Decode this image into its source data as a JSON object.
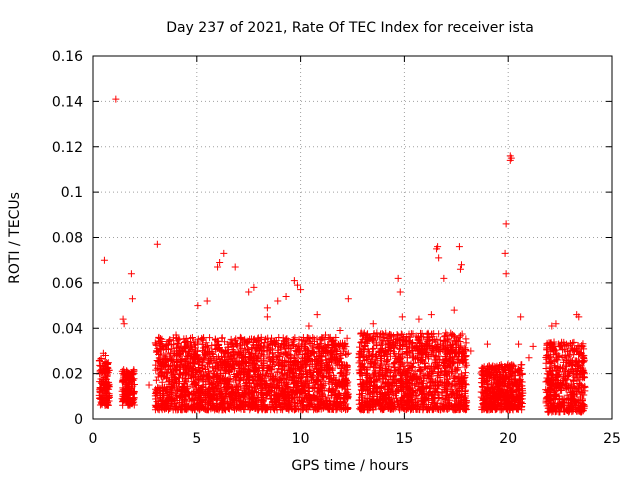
{
  "chart_data": {
    "type": "scatter",
    "title": "Day 237 of 2021, Rate Of TEC Index for receiver ista",
    "xlabel": "GPS time / hours",
    "ylabel": "ROTI / TECUs",
    "xlim": [
      0,
      25
    ],
    "ylim": [
      0,
      0.16
    ],
    "xticks": [
      "0",
      "5",
      "10",
      "15",
      "20",
      "25"
    ],
    "yticks": [
      "0",
      "0.02",
      "0.04",
      "0.06",
      "0.08",
      "0.1",
      "0.12",
      "0.14",
      "0.16"
    ],
    "grid": true,
    "marker": "+",
    "color": "#ff0000",
    "series": [
      {
        "name": "ROTI",
        "x": [
          1.1,
          0.55,
          3.1,
          6.1,
          6.0,
          6.3,
          6.85,
          5.05,
          5.5,
          4.0,
          1.85,
          1.9,
          1.45,
          1.5,
          9.7,
          9.85,
          10.0,
          9.3,
          8.9,
          8.4,
          7.5,
          7.75,
          10.8,
          11.9,
          12.3,
          14.7,
          14.8,
          16.6,
          16.55,
          16.65,
          16.9,
          17.65,
          17.7,
          17.75,
          19.9,
          19.85,
          19.9,
          20.1,
          20.15,
          20.1,
          20.6,
          20.5,
          23.3,
          23.4,
          22.3,
          22.1,
          21.2,
          19.0,
          0.5,
          0.6,
          3.7,
          4.4,
          7.1,
          8.4,
          11.2,
          13.5,
          15.7,
          18.2,
          21.0,
          22.8,
          23.7,
          2.7,
          16.3,
          17.4,
          14.9,
          10.4
        ],
        "y": [
          0.141,
          0.07,
          0.077,
          0.069,
          0.067,
          0.073,
          0.067,
          0.05,
          0.052,
          0.037,
          0.064,
          0.053,
          0.044,
          0.042,
          0.061,
          0.059,
          0.057,
          0.054,
          0.052,
          0.049,
          0.056,
          0.058,
          0.046,
          0.039,
          0.053,
          0.062,
          0.056,
          0.076,
          0.075,
          0.071,
          0.062,
          0.076,
          0.066,
          0.068,
          0.086,
          0.073,
          0.064,
          0.116,
          0.115,
          0.114,
          0.045,
          0.033,
          0.046,
          0.045,
          0.042,
          0.041,
          0.032,
          0.033,
          0.029,
          0.028,
          0.035,
          0.031,
          0.036,
          0.045,
          0.037,
          0.042,
          0.044,
          0.03,
          0.027,
          0.026,
          0.014,
          0.015,
          0.046,
          0.048,
          0.045,
          0.041
        ]
      }
    ],
    "dense_regions": [
      {
        "x_from": 0.3,
        "x_to": 0.8,
        "y_from": 0.006,
        "y_to": 0.027
      },
      {
        "x_from": 1.4,
        "x_to": 2.0,
        "y_from": 0.006,
        "y_to": 0.022
      },
      {
        "x_from": 3.0,
        "x_to": 12.3,
        "y_from": 0.004,
        "y_to": 0.036
      },
      {
        "x_from": 12.8,
        "x_to": 18.0,
        "y_from": 0.004,
        "y_to": 0.038
      },
      {
        "x_from": 18.7,
        "x_to": 20.7,
        "y_from": 0.004,
        "y_to": 0.024
      },
      {
        "x_from": 21.8,
        "x_to": 23.7,
        "y_from": 0.003,
        "y_to": 0.034
      }
    ]
  }
}
